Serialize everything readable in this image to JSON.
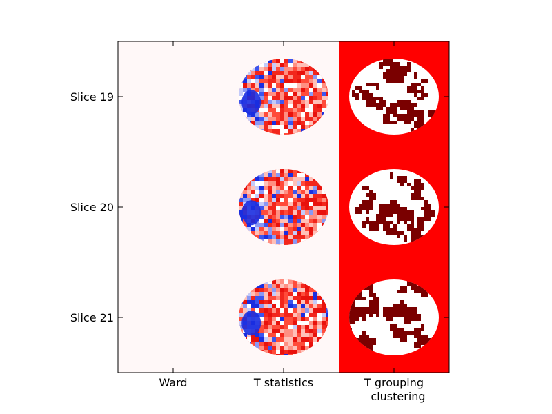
{
  "chart_data": {
    "type": "heatmap",
    "title": "",
    "xlabel": "",
    "ylabel": "",
    "columns": [
      "Ward",
      "T statistics",
      [
        "T grouping",
        "clustering"
      ]
    ],
    "rows": [
      "Slice 19",
      "Slice 20",
      "Slice 21"
    ],
    "column_backgrounds": [
      "#fff8f8",
      "#fff8f8",
      "#ff0000"
    ],
    "column_content": [
      "empty",
      "diverging brain t-map (blue-white-red)",
      "binary cluster mask (white disk, dark-red clusters)"
    ],
    "colors": {
      "positive": "#e8120d",
      "negative": "#1a2ee0",
      "neutral": "#ffffff",
      "cluster": "#7a0000",
      "background_light": "#fff8f8",
      "background_red": "#ff0000",
      "axes": "#000000"
    },
    "grid": false
  }
}
